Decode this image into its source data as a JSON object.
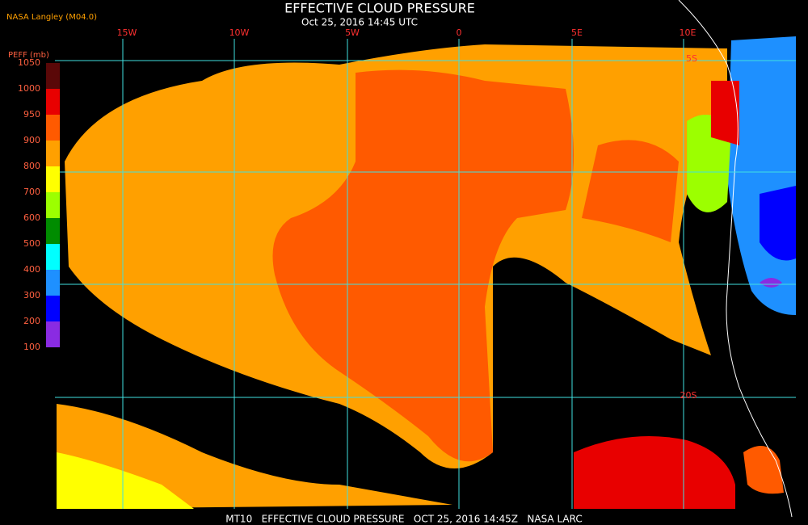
{
  "header": {
    "title": "EFFECTIVE CLOUD PRESSURE",
    "subtitle": "Oct 25, 2016 14:45 UTC",
    "source": "NASA Langley (M04.0)"
  },
  "legend": {
    "title": "PEFF (mb)",
    "ticks": [
      1050,
      1000,
      950,
      900,
      800,
      700,
      600,
      500,
      400,
      300,
      200,
      100
    ],
    "colors": [
      "#5a0808",
      "#e80000",
      "#ff5a00",
      "#ffa000",
      "#ffff00",
      "#9cff00",
      "#008c00",
      "#00ffff",
      "#1e90ff",
      "#0000ff",
      "#8a2be2"
    ]
  },
  "grid_labels": {
    "longitude": [
      "15W",
      "10W",
      "5W",
      "0",
      "5E",
      "10E"
    ],
    "latitude": [
      "5S",
      "20S"
    ]
  },
  "footer": "MT10   EFFECTIVE CLOUD PRESSURE   OCT 25, 2016 14:45Z   NASA LARC"
}
